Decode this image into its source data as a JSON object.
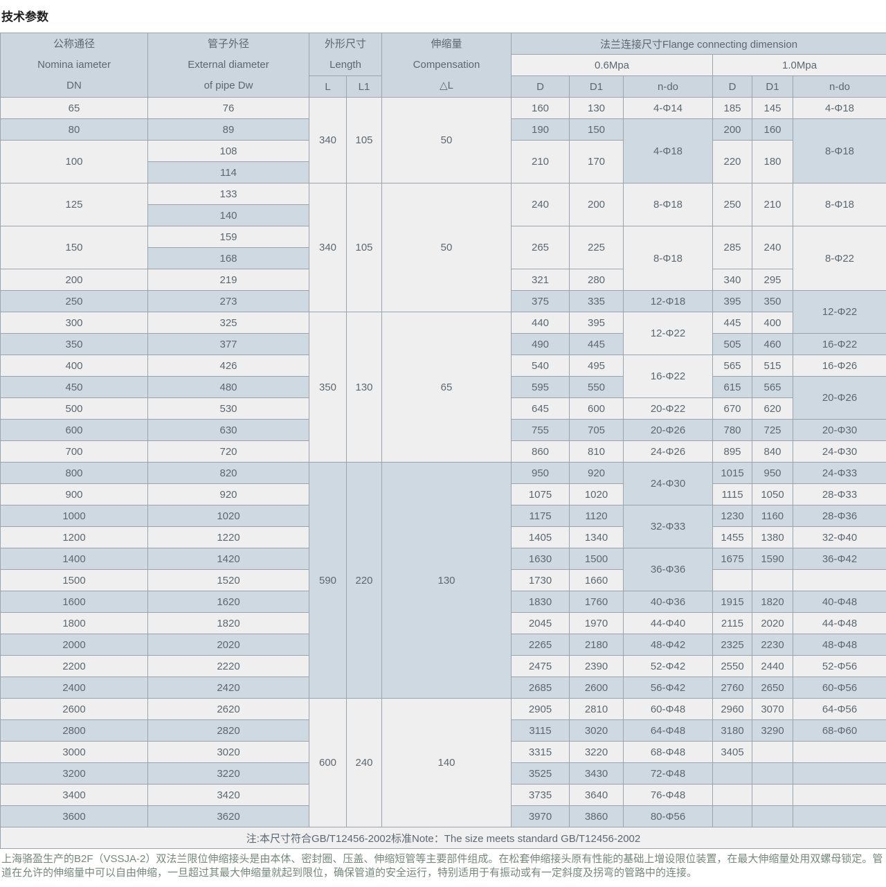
{
  "title": "技术参数",
  "header": {
    "dn": [
      "公称通径",
      "Nomina iameter",
      "DN"
    ],
    "dw": [
      "管子外径",
      "External diameter",
      "of pipe Dw"
    ],
    "size": [
      "外形尺寸",
      "Length"
    ],
    "l": "L",
    "l1": "L1",
    "comp": [
      "伸缩量",
      "Compensation",
      "△L"
    ],
    "flange": "法兰连接尺寸Flange connecting dimension",
    "p06": "0.6Mpa",
    "p10": "1.0Mpa",
    "d": "D",
    "d1": "D1",
    "ndo": "n-do"
  },
  "table": {
    "rows": [
      [
        {
          "v": "65"
        },
        {
          "v": "76"
        },
        {
          "v": "340",
          "rs": 4
        },
        {
          "v": "105",
          "rs": 4
        },
        {
          "v": "50",
          "rs": 4
        },
        {
          "v": "160"
        },
        {
          "v": "130"
        },
        {
          "v": "4-Φ14"
        },
        {
          "v": "185"
        },
        {
          "v": "145"
        },
        {
          "v": "4-Φ18"
        }
      ],
      [
        {
          "v": "80"
        },
        {
          "v": "89"
        },
        {
          "v": "190"
        },
        {
          "v": "150"
        },
        {
          "v": "4-Φ18",
          "rs": 3
        },
        {
          "v": "200"
        },
        {
          "v": "160"
        },
        {
          "v": "8-Φ18",
          "rs": 3
        }
      ],
      [
        {
          "v": "100",
          "rs": 2
        },
        {
          "v": "108"
        },
        {
          "v": "210",
          "rs": 2
        },
        {
          "v": "170",
          "rs": 2
        },
        {
          "v": "220",
          "rs": 2
        },
        {
          "v": "180",
          "rs": 2
        }
      ],
      [
        {
          "v": "114"
        }
      ],
      [
        {
          "v": "125",
          "rs": 2
        },
        {
          "v": "133"
        },
        {
          "v": "340",
          "rs": 6
        },
        {
          "v": "105",
          "rs": 6
        },
        {
          "v": "50",
          "rs": 6
        },
        {
          "v": "240",
          "rs": 2
        },
        {
          "v": "200",
          "rs": 2
        },
        {
          "v": "8-Φ18",
          "rs": 2
        },
        {
          "v": "250",
          "rs": 2
        },
        {
          "v": "210",
          "rs": 2
        },
        {
          "v": "8-Φ18",
          "rs": 2
        }
      ],
      [
        {
          "v": "140"
        }
      ],
      [
        {
          "v": "150",
          "rs": 2
        },
        {
          "v": "159"
        },
        {
          "v": "265",
          "rs": 2
        },
        {
          "v": "225",
          "rs": 2
        },
        {
          "v": "8-Φ18",
          "rs": 3
        },
        {
          "v": "285",
          "rs": 2
        },
        {
          "v": "240",
          "rs": 2
        },
        {
          "v": "8-Φ22",
          "rs": 3
        }
      ],
      [
        {
          "v": "168"
        }
      ],
      [
        {
          "v": "200"
        },
        {
          "v": "219"
        },
        {
          "v": "321"
        },
        {
          "v": "280"
        },
        {
          "v": "340"
        },
        {
          "v": "295"
        }
      ],
      [
        {
          "v": "250"
        },
        {
          "v": "273"
        },
        {
          "v": "375"
        },
        {
          "v": "335"
        },
        {
          "v": "12-Φ18"
        },
        {
          "v": "395"
        },
        {
          "v": "350"
        },
        {
          "v": "12-Φ22",
          "rs": 2
        }
      ],
      [
        {
          "v": "300"
        },
        {
          "v": "325"
        },
        {
          "v": "350",
          "rs": 7
        },
        {
          "v": "130",
          "rs": 7
        },
        {
          "v": "65",
          "rs": 7
        },
        {
          "v": "440"
        },
        {
          "v": "395"
        },
        {
          "v": "12-Φ22",
          "rs": 2
        },
        {
          "v": "445"
        },
        {
          "v": "400"
        }
      ],
      [
        {
          "v": "350"
        },
        {
          "v": "377"
        },
        {
          "v": "490"
        },
        {
          "v": "445"
        },
        {
          "v": "505"
        },
        {
          "v": "460"
        },
        {
          "v": "16-Φ22"
        }
      ],
      [
        {
          "v": "400"
        },
        {
          "v": "426"
        },
        {
          "v": "540"
        },
        {
          "v": "495"
        },
        {
          "v": "16-Φ22",
          "rs": 2
        },
        {
          "v": "565"
        },
        {
          "v": "515"
        },
        {
          "v": "16-Φ26"
        }
      ],
      [
        {
          "v": "450"
        },
        {
          "v": "480"
        },
        {
          "v": "595"
        },
        {
          "v": "550"
        },
        {
          "v": "615"
        },
        {
          "v": "565"
        },
        {
          "v": "20-Φ26",
          "rs": 2
        }
      ],
      [
        {
          "v": "500"
        },
        {
          "v": "530"
        },
        {
          "v": "645"
        },
        {
          "v": "600"
        },
        {
          "v": "20-Φ22"
        },
        {
          "v": "670"
        },
        {
          "v": "620"
        }
      ],
      [
        {
          "v": "600"
        },
        {
          "v": "630"
        },
        {
          "v": "755"
        },
        {
          "v": "705"
        },
        {
          "v": "20-Φ26"
        },
        {
          "v": "780"
        },
        {
          "v": "725"
        },
        {
          "v": "20-Φ30"
        }
      ],
      [
        {
          "v": "700"
        },
        {
          "v": "720"
        },
        {
          "v": "860"
        },
        {
          "v": "810"
        },
        {
          "v": "24-Φ26"
        },
        {
          "v": "895"
        },
        {
          "v": "840"
        },
        {
          "v": "24-Φ30"
        }
      ],
      [
        {
          "v": "800"
        },
        {
          "v": "820"
        },
        {
          "v": "590",
          "rs": 11
        },
        {
          "v": "220",
          "rs": 11
        },
        {
          "v": "130",
          "rs": 11
        },
        {
          "v": "950"
        },
        {
          "v": "920"
        },
        {
          "v": "24-Φ30",
          "rs": 2
        },
        {
          "v": "1015"
        },
        {
          "v": "950"
        },
        {
          "v": "24-Φ33"
        }
      ],
      [
        {
          "v": "900"
        },
        {
          "v": "920"
        },
        {
          "v": "1075"
        },
        {
          "v": "1020"
        },
        {
          "v": "1115"
        },
        {
          "v": "1050"
        },
        {
          "v": "28-Φ33"
        }
      ],
      [
        {
          "v": "1000"
        },
        {
          "v": "1020"
        },
        {
          "v": "1175"
        },
        {
          "v": "1120"
        },
        {
          "v": "32-Φ33",
          "rs": 2
        },
        {
          "v": "1230"
        },
        {
          "v": "1160"
        },
        {
          "v": "28-Φ36"
        }
      ],
      [
        {
          "v": "1200"
        },
        {
          "v": "1220"
        },
        {
          "v": "1405"
        },
        {
          "v": "1340"
        },
        {
          "v": "1455"
        },
        {
          "v": "1380"
        },
        {
          "v": "32-Φ40"
        }
      ],
      [
        {
          "v": "1400"
        },
        {
          "v": "1420"
        },
        {
          "v": "1630"
        },
        {
          "v": "1500"
        },
        {
          "v": "36-Φ36",
          "rs": 2
        },
        {
          "v": "1675"
        },
        {
          "v": "1590"
        },
        {
          "v": "36-Φ42"
        }
      ],
      [
        {
          "v": "1500"
        },
        {
          "v": "1520"
        },
        {
          "v": "1730"
        },
        {
          "v": "1660"
        },
        {
          "v": ""
        },
        {
          "v": ""
        },
        {
          "v": ""
        }
      ],
      [
        {
          "v": "1600"
        },
        {
          "v": "1620"
        },
        {
          "v": "1830"
        },
        {
          "v": "1760"
        },
        {
          "v": "40-Φ36"
        },
        {
          "v": "1915"
        },
        {
          "v": "1820"
        },
        {
          "v": "40-Φ48"
        }
      ],
      [
        {
          "v": "1800"
        },
        {
          "v": "1820"
        },
        {
          "v": "2045"
        },
        {
          "v": "1970"
        },
        {
          "v": "44-Φ40"
        },
        {
          "v": "2115"
        },
        {
          "v": "2020"
        },
        {
          "v": "44-Φ48"
        }
      ],
      [
        {
          "v": "2000"
        },
        {
          "v": "2020"
        },
        {
          "v": "2265"
        },
        {
          "v": "2180"
        },
        {
          "v": "48-Φ42"
        },
        {
          "v": "2325"
        },
        {
          "v": "2230"
        },
        {
          "v": "48-Φ48"
        }
      ],
      [
        {
          "v": "2200"
        },
        {
          "v": "2220"
        },
        {
          "v": "2475"
        },
        {
          "v": "2390"
        },
        {
          "v": "52-Φ42"
        },
        {
          "v": "2550"
        },
        {
          "v": "2440"
        },
        {
          "v": "52-Φ56"
        }
      ],
      [
        {
          "v": "2400"
        },
        {
          "v": "2420"
        },
        {
          "v": "2685"
        },
        {
          "v": "2600"
        },
        {
          "v": "56-Φ42"
        },
        {
          "v": "2760"
        },
        {
          "v": "2650"
        },
        {
          "v": "60-Φ56"
        }
      ],
      [
        {
          "v": "2600"
        },
        {
          "v": "2620"
        },
        {
          "v": "600",
          "rs": 6
        },
        {
          "v": "240",
          "rs": 6
        },
        {
          "v": "140",
          "rs": 6
        },
        {
          "v": "2905"
        },
        {
          "v": "2810"
        },
        {
          "v": "60-Φ48"
        },
        {
          "v": "2960"
        },
        {
          "v": "3070"
        },
        {
          "v": "64-Φ56"
        }
      ],
      [
        {
          "v": "2800"
        },
        {
          "v": "2820"
        },
        {
          "v": "3115"
        },
        {
          "v": "3020"
        },
        {
          "v": "64-Φ48"
        },
        {
          "v": "3180"
        },
        {
          "v": "3290"
        },
        {
          "v": "68-Φ60"
        }
      ],
      [
        {
          "v": "3000"
        },
        {
          "v": "3020"
        },
        {
          "v": "3315"
        },
        {
          "v": "3220"
        },
        {
          "v": "68-Φ48"
        },
        {
          "v": "3405"
        },
        {
          "v": ""
        },
        {
          "v": ""
        }
      ],
      [
        {
          "v": "3200"
        },
        {
          "v": "3220"
        },
        {
          "v": "3525"
        },
        {
          "v": "3430"
        },
        {
          "v": "72-Φ48"
        },
        {
          "v": ""
        },
        {
          "v": ""
        },
        {
          "v": ""
        }
      ],
      [
        {
          "v": "3400"
        },
        {
          "v": "3420"
        },
        {
          "v": "3735"
        },
        {
          "v": "3640"
        },
        {
          "v": "76-Φ48"
        },
        {
          "v": ""
        },
        {
          "v": ""
        },
        {
          "v": ""
        }
      ],
      [
        {
          "v": "3600"
        },
        {
          "v": "3620"
        },
        {
          "v": "3970"
        },
        {
          "v": "3860"
        },
        {
          "v": "80-Φ56"
        },
        {
          "v": ""
        },
        {
          "v": ""
        },
        {
          "v": ""
        }
      ]
    ]
  },
  "note": "注:本尺寸符合GB/T12456-2002标准Note：The size meets standard GB/T12456-2002",
  "description": "上海骆盈生产的B2F（VSSJA-2）双法兰限位伸缩接头是由本体、密封圈、压盖、伸缩短管等主要部件组成。在松套伸缩接头原有性能的基础上增设限位装置，在最大伸缩量处用双螺母锁定。管道在允许的伸缩量中可以自由伸缩，一旦超过其最大伸缩量就起到限位，确保管道的安全运行，特别适用于有振动或有一定斜度及拐弯的管路中的连接。"
}
